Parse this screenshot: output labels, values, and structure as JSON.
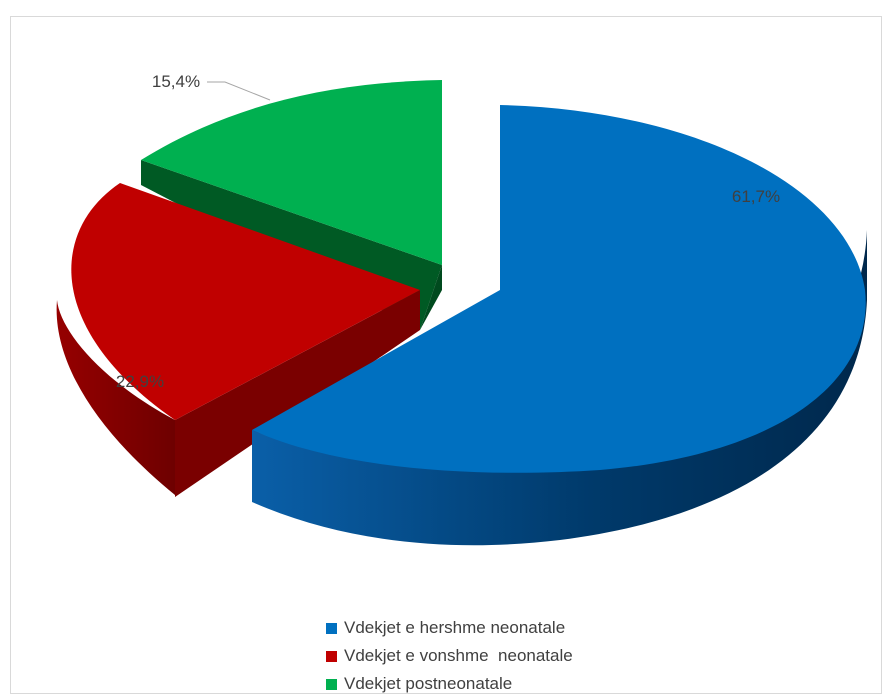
{
  "chart_data": {
    "type": "pie",
    "title": "",
    "series": [
      {
        "values": [
          61.7,
          22.9,
          15.4
        ],
        "labels": [
          "61,7%",
          "22,9%",
          "15,4%"
        ]
      }
    ],
    "categories": [
      "Vdekjet e hershme neonatale",
      "Vdekjet e vonshme  neonatale",
      "Vdekjet postneonatale"
    ],
    "colors": [
      "#0070c0",
      "#c00000",
      "#00b050"
    ],
    "side_colors": [
      "#00427a",
      "#7a0000",
      "#006b2d"
    ],
    "style": "3d-exploded",
    "legend_position": "bottom"
  }
}
